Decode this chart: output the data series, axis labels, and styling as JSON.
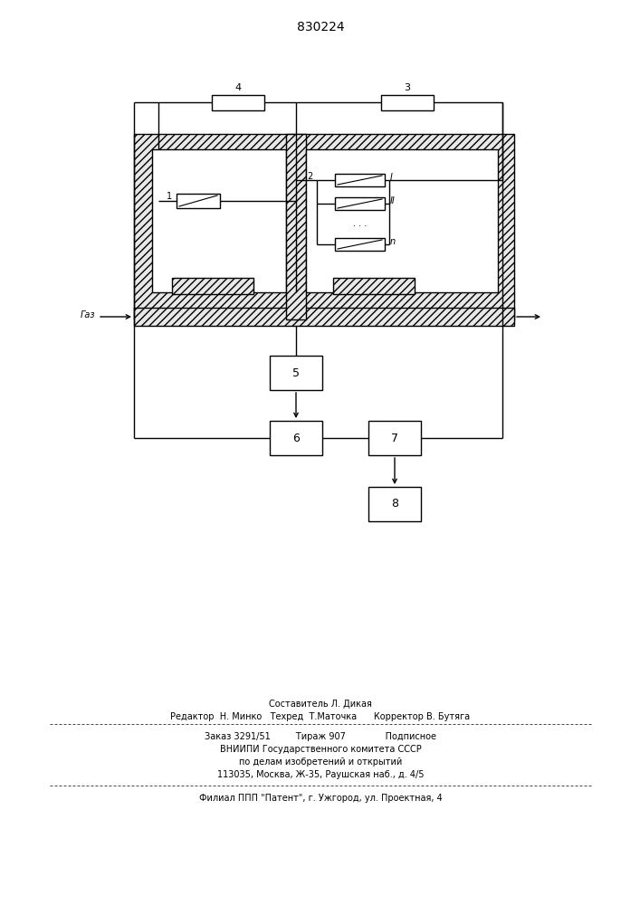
{
  "title": "830224",
  "bg_color": "#ffffff",
  "text_color": "#000000",
  "footer_line1": "Составитель Л. Дикая",
  "footer_line2": "Редактор  Н. Минко   Техред  Т.Маточка      Корректор В. Бутяга",
  "footer_line3": "Заказ 3291/51         Тираж 907              Подписное",
  "footer_line4": "ВНИИПИ Государственного комитета СССР",
  "footer_line5": "по делам изобретений и открытий",
  "footer_line6": "113035, Москва, Ж-35, Раушская наб., д. 4/5",
  "footer_line7": "Филиал ППП \"Патент\", г. Ужгород, ул. Проектная, 4"
}
